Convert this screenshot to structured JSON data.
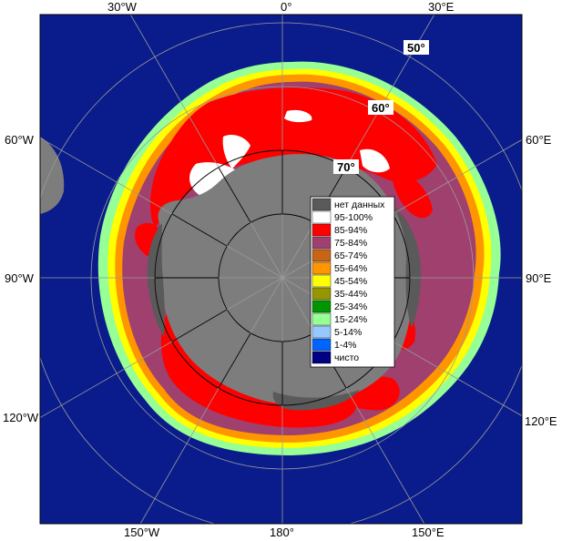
{
  "map": {
    "lon_labels": {
      "top": [
        "30°W",
        "0°",
        "30°E"
      ],
      "left": [
        "60°W",
        "90°W",
        "120°W"
      ],
      "right": [
        "60°E",
        "90°E",
        "120°E"
      ],
      "bottom": [
        "150°W",
        "180°",
        "150°E"
      ]
    },
    "lat_labels": [
      "50°",
      "60°",
      "70°"
    ],
    "legend": {
      "items": [
        {
          "label": "нет данных",
          "color": "#5a5a5a"
        },
        {
          "label": "95-100%",
          "color": "#ffffff"
        },
        {
          "label": "85-94%",
          "color": "#ff0000"
        },
        {
          "label": "75-84%",
          "color": "#a0406e"
        },
        {
          "label": "65-74%",
          "color": "#c86414"
        },
        {
          "label": "55-64%",
          "color": "#ff9600"
        },
        {
          "label": "45-54%",
          "color": "#ffff00"
        },
        {
          "label": "35-44%",
          "color": "#969600"
        },
        {
          "label": "25-34%",
          "color": "#009600"
        },
        {
          "label": "15-24%",
          "color": "#96ff96"
        },
        {
          "label": "5-14%",
          "color": "#96c8ff"
        },
        {
          "label": "1-4%",
          "color": "#0064ff"
        },
        {
          "label": "чисто",
          "color": "#000080"
        }
      ]
    },
    "colors": {
      "ocean": "#0a1c8c",
      "land": "#7d7d7d",
      "ice_shelf": "#5a5a5a",
      "grid": "#9a9a9a"
    }
  }
}
